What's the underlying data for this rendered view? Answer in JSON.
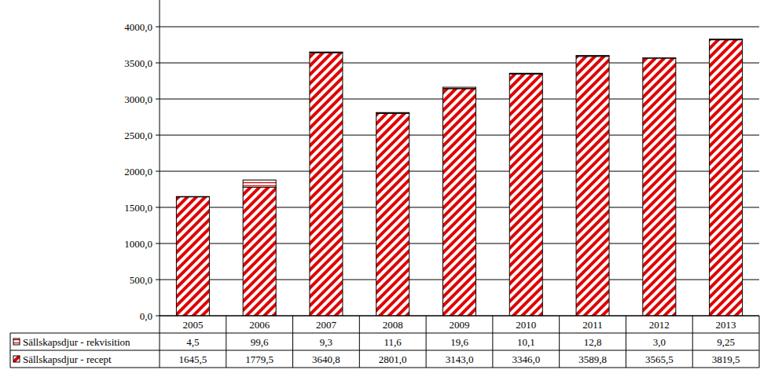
{
  "chart_data": {
    "type": "bar",
    "stacked": true,
    "grid": true,
    "categories": [
      "2005",
      "2006",
      "2007",
      "2008",
      "2009",
      "2010",
      "2011",
      "2012",
      "2013"
    ],
    "series": [
      {
        "name": "Sällskapsdjur - recept",
        "color": "#e00000",
        "values": [
          1645.5,
          1779.5,
          3640.8,
          2801.0,
          3143.0,
          3346.0,
          3589.8,
          3565.5,
          3819.5
        ],
        "value_labels": [
          "1645,5",
          "1779,5",
          "3640,8",
          "2801,0",
          "3143,0",
          "3346,0",
          "3589,8",
          "3565,5",
          "3819,5"
        ]
      },
      {
        "name": "Sällskapsdjur - rekvisition",
        "color": "#e00000",
        "values": [
          4.5,
          99.6,
          9.3,
          11.6,
          19.6,
          10.1,
          12.8,
          3.0,
          9.25
        ],
        "value_labels": [
          "4,5",
          "99,6",
          "9,3",
          "11,6",
          "19,6",
          "10,1",
          "12,8",
          "3,0",
          "9,25"
        ]
      }
    ],
    "ylim": [
      0,
      4370
    ],
    "yticks": [
      {
        "value": 0,
        "label": "0,0"
      },
      {
        "value": 500,
        "label": "500,0"
      },
      {
        "value": 1000,
        "label": "1000,0"
      },
      {
        "value": 1500,
        "label": "1500,0"
      },
      {
        "value": 2000,
        "label": "2000,0"
      },
      {
        "value": 2500,
        "label": "2500,0"
      },
      {
        "value": 3000,
        "label": "3000,0"
      },
      {
        "value": 3500,
        "label": "3500,0"
      },
      {
        "value": 4000,
        "label": "4000,0"
      }
    ]
  }
}
